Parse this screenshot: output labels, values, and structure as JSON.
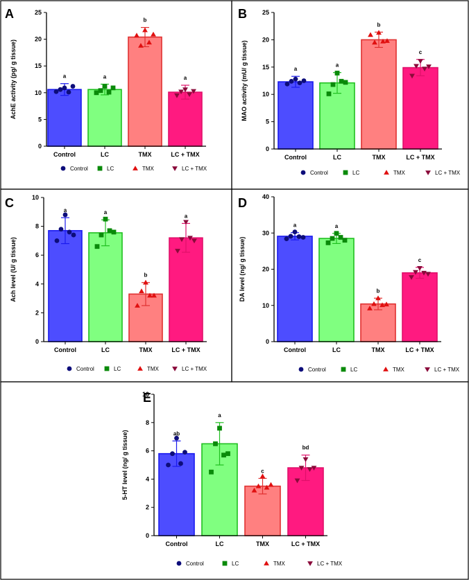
{
  "chart_data": [
    {
      "panel": "A",
      "type": "bar",
      "ylabel": "AchE activity (pg/ g tissue)",
      "ylim": [
        0,
        25
      ],
      "yticks": [
        0,
        5,
        10,
        15,
        20,
        25
      ],
      "categories": [
        "Control",
        "LC",
        "TMX",
        "LC + TMX"
      ],
      "values": [
        10.6,
        10.6,
        20.4,
        10.1
      ],
      "errors": [
        1.1,
        1.0,
        1.8,
        1.3
      ],
      "letters": [
        "a",
        "a",
        "b",
        "a"
      ],
      "points": [
        [
          10.2,
          10.6,
          10.9,
          10.1,
          11.2
        ],
        [
          10.0,
          10.4,
          11.2,
          10.1,
          10.9
        ],
        [
          20.7,
          18.8,
          21.7,
          19.4,
          20.9
        ],
        [
          9.5,
          10.2,
          10.6,
          9.7,
          10.3
        ]
      ],
      "legend": [
        "Control",
        "LC",
        "TMX",
        "LC + TMX"
      ]
    },
    {
      "panel": "B",
      "type": "bar",
      "ylabel": "MAO activity (mU/ g tissue)",
      "ylim": [
        0,
        25
      ],
      "yticks": [
        0,
        5,
        10,
        15,
        20,
        25
      ],
      "categories": [
        "Control",
        "LC",
        "TMX",
        "LC + TMX"
      ],
      "values": [
        12.3,
        12.1,
        20.0,
        14.9
      ],
      "errors": [
        1.0,
        1.9,
        1.4,
        1.5
      ],
      "letters": [
        "a",
        "a",
        "b",
        "c"
      ],
      "points": [
        [
          11.9,
          12.4,
          12.8,
          12.1,
          12.5
        ],
        [
          10.1,
          11.8,
          13.9,
          12.4,
          12.2
        ],
        [
          20.9,
          19.5,
          21.3,
          19.7,
          19.8
        ],
        [
          13.4,
          15.2,
          16.1,
          14.7,
          15.1
        ]
      ],
      "legend": [
        "Control",
        "LC",
        "TMX",
        "LC + TMX"
      ]
    },
    {
      "panel": "C",
      "type": "bar",
      "ylabel": "Ach level (U/ g tissue)",
      "ylim": [
        0,
        10
      ],
      "yticks": [
        0,
        2,
        4,
        6,
        8,
        10
      ],
      "categories": [
        "Control",
        "LC",
        "TMX",
        "LC + TMX"
      ],
      "values": [
        7.7,
        7.55,
        3.3,
        7.2
      ],
      "errors": [
        0.9,
        0.9,
        0.8,
        1.0
      ],
      "letters": [
        "a",
        "a",
        "b",
        "a"
      ],
      "points": [
        [
          7.0,
          7.8,
          8.8,
          7.6,
          7.4
        ],
        [
          6.6,
          7.4,
          8.5,
          7.7,
          7.6
        ],
        [
          2.5,
          3.5,
          4.1,
          3.2,
          3.2
        ],
        [
          6.3,
          7.1,
          8.3,
          7.2,
          7.0
        ]
      ],
      "legend": [
        "Control",
        "LC",
        "TMX",
        "LC + TMX"
      ]
    },
    {
      "panel": "D",
      "type": "bar",
      "ylabel": "DA level (ng/ g tissue)",
      "ylim": [
        0,
        40
      ],
      "yticks": [
        0,
        10,
        20,
        30,
        40
      ],
      "categories": [
        "Control",
        "LC",
        "TMX",
        "LC + TMX"
      ],
      "values": [
        29.1,
        28.5,
        10.4,
        19.0
      ],
      "errors": [
        1.0,
        1.4,
        1.6,
        1.5
      ],
      "letters": [
        "a",
        "a",
        "b",
        "c"
      ],
      "points": [
        [
          28.4,
          29.1,
          30.3,
          29.0,
          28.8
        ],
        [
          27.3,
          28.5,
          29.9,
          28.8,
          28.0
        ],
        [
          9.2,
          10.4,
          12.0,
          10.1,
          10.3
        ],
        [
          17.8,
          19.2,
          20.3,
          19.0,
          18.7
        ]
      ],
      "legend": [
        "Control",
        "LC",
        "TMX",
        "LC + TMX"
      ]
    },
    {
      "panel": "E",
      "type": "bar",
      "ylabel": "5-HT level (ng/ g tissue)",
      "ylim": [
        0,
        10
      ],
      "yticks": [
        0,
        2,
        4,
        6,
        8,
        10
      ],
      "categories": [
        "Control",
        "LC",
        "TMX",
        "LC + TMX"
      ],
      "values": [
        5.8,
        6.5,
        3.5,
        4.8
      ],
      "errors": [
        0.9,
        1.5,
        0.55,
        0.9
      ],
      "letters": [
        "ab",
        "a",
        "c",
        "bd"
      ],
      "points": [
        [
          5.0,
          5.8,
          6.9,
          5.1,
          5.9
        ],
        [
          4.5,
          6.5,
          7.6,
          5.7,
          5.8
        ],
        [
          3.2,
          3.5,
          4.2,
          3.4,
          3.6
        ],
        [
          3.9,
          4.8,
          5.4,
          4.7,
          4.8
        ]
      ],
      "legend": [
        "Control",
        "LC",
        "TMX",
        "LC + TMX"
      ]
    }
  ],
  "colors": {
    "fills": [
      "#4d4dff",
      "#80ff80",
      "#ff8080",
      "#ff1a80"
    ],
    "strokes": [
      "#1a1aee",
      "#1fbf1f",
      "#e03030",
      "#e0106a"
    ],
    "markers": [
      "#0d0d7a",
      "#0a8a0a",
      "#e01010",
      "#8a0a3a"
    ],
    "marker_shapes": [
      "circle",
      "square",
      "triangle-up",
      "triangle-down"
    ]
  }
}
